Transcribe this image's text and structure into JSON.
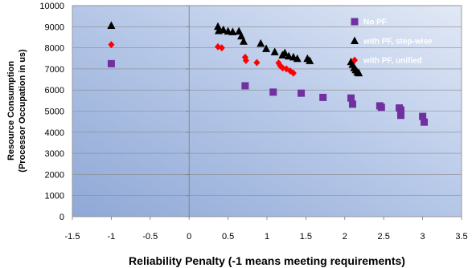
{
  "chart_data": {
    "type": "scatter",
    "xlabel": "Reliability Penalty (-1 means meeting requirements)",
    "ylabel_line1": "Resource Consumption",
    "ylabel_line2": "(Processor Occupation in us)",
    "xlim": [
      -1.5,
      3.5
    ],
    "ylim": [
      0,
      10000
    ],
    "x_ticks": [
      -1.5,
      -1,
      -0.5,
      0,
      0.5,
      1,
      1.5,
      2,
      2.5,
      3,
      3.5
    ],
    "x_tick_labels": [
      "-1.5",
      "-1",
      "-0.5",
      "0",
      "0.5",
      "1",
      "1.5",
      "2",
      "2.5",
      "3",
      "3.5"
    ],
    "y_ticks": [
      0,
      1000,
      2000,
      3000,
      4000,
      5000,
      6000,
      7000,
      8000,
      9000,
      10000
    ],
    "y_tick_labels": [
      "0",
      "1000",
      "2000",
      "3000",
      "4000",
      "5000",
      "6000",
      "7000",
      "8000",
      "9000",
      "10000"
    ],
    "grid": "horizontal",
    "legend_position": "top-right",
    "series": [
      {
        "name": "No PF",
        "color": "#7030a0",
        "marker": "square",
        "points": [
          [
            -1.0,
            7250
          ],
          [
            0.72,
            6200
          ],
          [
            1.08,
            5900
          ],
          [
            1.44,
            5850
          ],
          [
            1.72,
            5650
          ],
          [
            2.08,
            5620
          ],
          [
            2.1,
            5330
          ],
          [
            2.45,
            5250
          ],
          [
            2.47,
            5180
          ],
          [
            2.7,
            5150
          ],
          [
            2.72,
            5050
          ],
          [
            2.72,
            4800
          ],
          [
            3.0,
            4750
          ],
          [
            3.02,
            4480
          ]
        ]
      },
      {
        "name": "with PF, step-wise",
        "color": "#000000",
        "marker": "triangle",
        "points": [
          [
            -1.0,
            9050
          ],
          [
            0.37,
            9000
          ],
          [
            0.38,
            8800
          ],
          [
            0.44,
            8850
          ],
          [
            0.5,
            8780
          ],
          [
            0.56,
            8750
          ],
          [
            0.64,
            8780
          ],
          [
            0.67,
            8550
          ],
          [
            0.7,
            8300
          ],
          [
            0.92,
            8200
          ],
          [
            0.99,
            7950
          ],
          [
            1.1,
            7800
          ],
          [
            1.2,
            7650
          ],
          [
            1.23,
            7750
          ],
          [
            1.28,
            7600
          ],
          [
            1.34,
            7550
          ],
          [
            1.39,
            7480
          ],
          [
            1.52,
            7480
          ],
          [
            1.55,
            7380
          ],
          [
            2.08,
            7330
          ],
          [
            2.1,
            7200
          ],
          [
            2.12,
            7050
          ],
          [
            2.14,
            6950
          ],
          [
            2.16,
            6850
          ],
          [
            2.18,
            6800
          ]
        ]
      },
      {
        "name": "with PF, unified",
        "color": "#ff0000",
        "marker": "diamond",
        "points": [
          [
            -1.0,
            8150
          ],
          [
            0.37,
            8050
          ],
          [
            0.42,
            8000
          ],
          [
            0.72,
            7550
          ],
          [
            0.73,
            7400
          ],
          [
            0.87,
            7300
          ],
          [
            1.15,
            7280
          ],
          [
            1.17,
            7150
          ],
          [
            1.2,
            7050
          ],
          [
            1.25,
            7000
          ],
          [
            1.3,
            6900
          ],
          [
            1.34,
            6800
          ]
        ]
      }
    ]
  }
}
